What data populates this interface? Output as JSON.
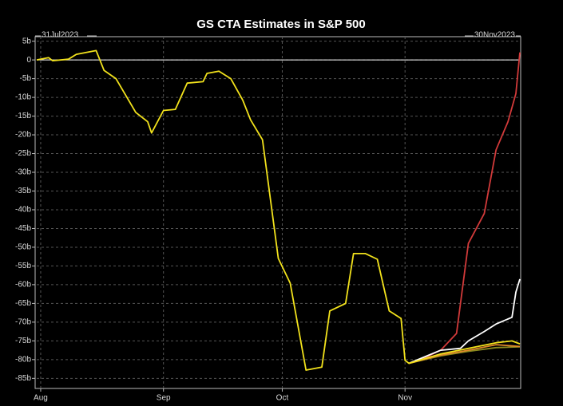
{
  "chart_data": {
    "type": "line",
    "title": "GS CTA Estimates in S&P 500",
    "annotations": [
      "31Jul2023",
      "30Nov2023"
    ],
    "xlim": [
      "2023-07-31",
      "2023-11-30"
    ],
    "xticks": [
      {
        "value": "2023-08-01",
        "label": "Aug"
      },
      {
        "value": "2023-09-01",
        "label": "Sep"
      },
      {
        "value": "2023-10-01",
        "label": "Oct"
      },
      {
        "value": "2023-11-01",
        "label": "Nov"
      }
    ],
    "ylim": [
      -87.7,
      6.2
    ],
    "yticks": [
      {
        "value": 5,
        "label": "5b"
      },
      0,
      {
        "value": -5,
        "label": "-5b"
      },
      {
        "value": -10,
        "label": "-10b"
      },
      {
        "value": -15,
        "label": "-15b"
      },
      {
        "value": -20,
        "label": "-20b"
      },
      {
        "value": -25,
        "label": "-25b"
      },
      {
        "value": -30,
        "label": "-30b"
      },
      {
        "value": -35,
        "label": "-35b"
      },
      {
        "value": -40,
        "label": "-40b"
      },
      {
        "value": -45,
        "label": "-45b"
      },
      {
        "value": -50,
        "label": "-50b"
      },
      {
        "value": -55,
        "label": "-55b"
      },
      {
        "value": -60,
        "label": "-60b"
      },
      {
        "value": -65,
        "label": "-65b"
      },
      {
        "value": -70,
        "label": "-70b"
      },
      {
        "value": -75,
        "label": "-75b"
      },
      {
        "value": -80,
        "label": "-80b"
      },
      {
        "value": -85,
        "label": "-85b"
      }
    ],
    "hline": 0,
    "grid": true,
    "series": [
      {
        "color": "#d23a3a",
        "x": [
          "2023-11-02",
          "2023-11-06",
          "2023-11-10",
          "2023-11-14",
          "2023-11-17",
          "2023-11-21",
          "2023-11-24",
          "2023-11-27",
          "2023-11-29",
          "2023-11-30"
        ],
        "values": [
          -81,
          -79.5,
          -77.5,
          -73,
          -49,
          -41,
          -24,
          -16.5,
          -9,
          2
        ]
      },
      {
        "color": "#ffffff",
        "x": [
          "2023-11-02",
          "2023-11-10",
          "2023-11-15",
          "2023-11-17",
          "2023-11-21",
          "2023-11-24",
          "2023-11-28",
          "2023-11-29",
          "2023-11-30"
        ],
        "values": [
          -81,
          -77.5,
          -77,
          -75,
          -72.5,
          -70.5,
          -68.7,
          -62,
          -58.5
        ]
      },
      {
        "color": "#8a8a1e",
        "x": [
          "2023-11-02",
          "2023-11-10",
          "2023-11-17",
          "2023-11-24",
          "2023-11-30"
        ],
        "values": [
          -81,
          -79,
          -77.8,
          -76.8,
          -76.6
        ]
      },
      {
        "color": "#e08a2a",
        "x": [
          "2023-11-02",
          "2023-11-10",
          "2023-11-17",
          "2023-11-24",
          "2023-11-30"
        ],
        "values": [
          -81,
          -78.8,
          -77.5,
          -76,
          -76.5
        ]
      },
      {
        "color": "#f2e21c",
        "x": [
          "2023-07-31",
          "2023-08-03",
          "2023-08-04",
          "2023-08-08",
          "2023-08-10",
          "2023-08-15",
          "2023-08-17",
          "2023-08-20",
          "2023-08-25",
          "2023-08-28",
          "2023-08-29",
          "2023-09-01",
          "2023-09-04",
          "2023-09-07",
          "2023-09-11",
          "2023-09-12",
          "2023-09-15",
          "2023-09-18",
          "2023-09-21",
          "2023-09-23",
          "2023-09-26",
          "2023-09-30",
          "2023-10-03",
          "2023-10-07",
          "2023-10-11",
          "2023-10-13",
          "2023-10-17",
          "2023-10-19",
          "2023-10-22",
          "2023-10-25",
          "2023-10-28",
          "2023-10-31",
          "2023-11-01",
          "2023-11-02",
          "2023-11-10",
          "2023-11-17",
          "2023-11-24",
          "2023-11-28",
          "2023-11-30"
        ],
        "values": [
          0,
          0.6,
          -0.2,
          0.2,
          1.5,
          2.5,
          -2.8,
          -5,
          -14,
          -16.5,
          -19.5,
          -13.5,
          -13.2,
          -6.2,
          -5.8,
          -3.6,
          -3,
          -5,
          -10.7,
          -16,
          -21.3,
          -53,
          -59.6,
          -82.8,
          -82,
          -67,
          -65,
          -51.7,
          -51.7,
          -53.2,
          -67,
          -69,
          -80.2,
          -81,
          -78.5,
          -77,
          -75.5,
          -75,
          -75.8
        ]
      }
    ]
  }
}
